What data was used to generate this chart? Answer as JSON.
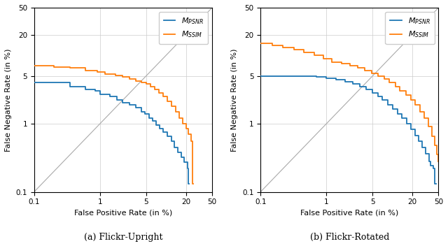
{
  "caption_left": "(a) Flickr-Upright",
  "caption_right": "(b) Flickr-Rotated",
  "xlabel": "False Positive Rate (in %)",
  "ylabel": "False Negative Rate (in %)",
  "xlim": [
    0.1,
    50
  ],
  "ylim": [
    0.1,
    50
  ],
  "xticks": [
    0.1,
    1,
    5,
    20,
    50
  ],
  "yticks": [
    0.1,
    1,
    5,
    20,
    50
  ],
  "color_psnr": "#1f77b4",
  "color_ssim": "#ff7f0e",
  "label_psnr": "$M_{PSNR}$",
  "label_ssim": "$M_{SSIM}$",
  "legend_fontsize": 8,
  "axis_fontsize": 8,
  "tick_fontsize": 7.5,
  "caption_fontsize": 9,
  "figsize": [
    6.4,
    3.52
  ],
  "dpi": 100
}
